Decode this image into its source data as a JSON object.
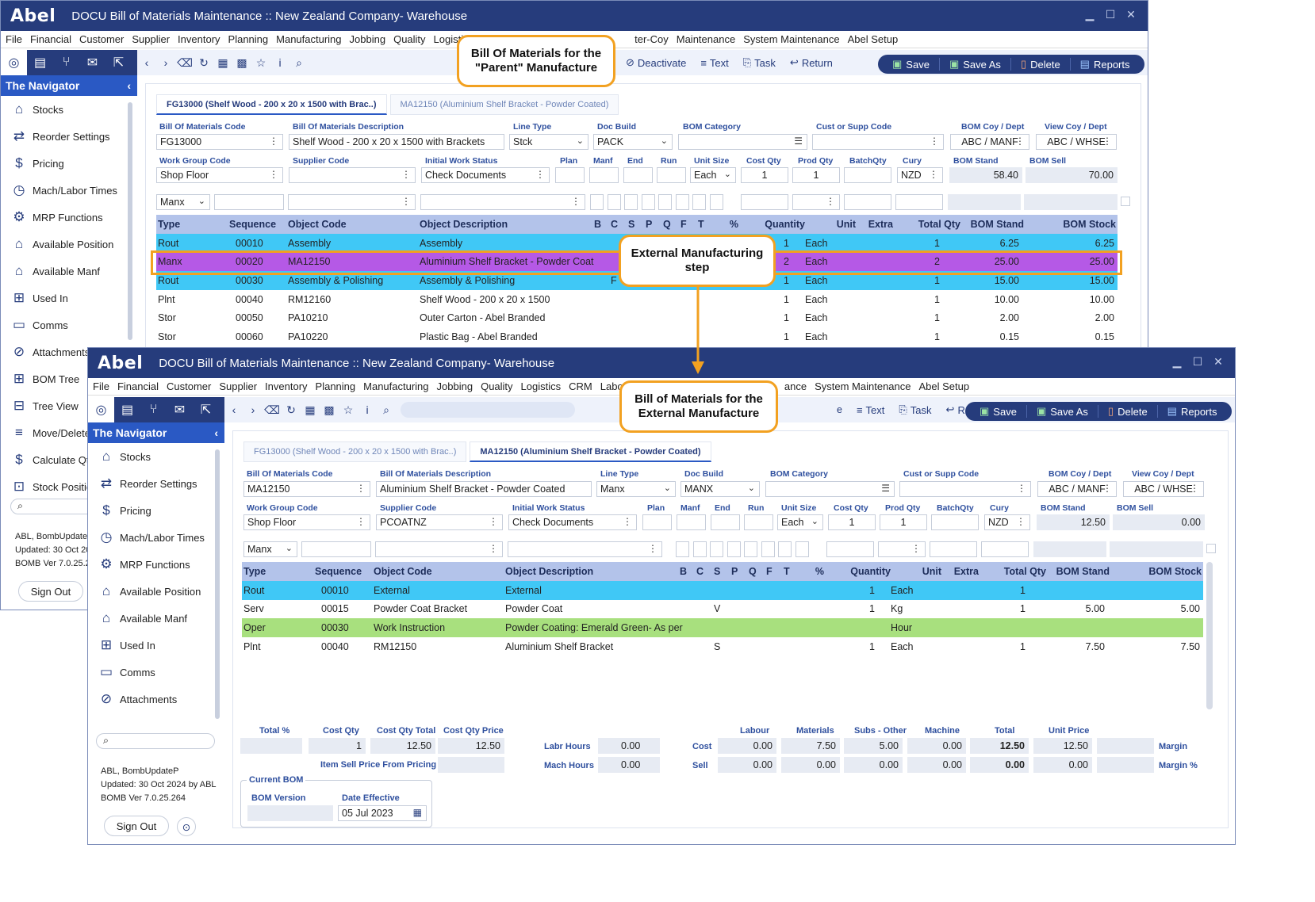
{
  "app": {
    "logo": "Abel",
    "title": "DOCU Bill of Materials Maintenance :: New Zealand Company- Warehouse"
  },
  "menu1": [
    "File",
    "Financial",
    "Customer",
    "Supplier",
    "Inventory",
    "Planning",
    "Manufacturing",
    "Jobbing",
    "Quality",
    "Logisti",
    "ter-Coy",
    "Maintenance",
    "System Maintenance",
    "Abel Setup"
  ],
  "menu2": [
    "File",
    "Financial",
    "Customer",
    "Supplier",
    "Inventory",
    "Planning",
    "Manufacturing",
    "Jobbing",
    "Quality",
    "Logistics",
    "CRM",
    "Labou",
    "ance",
    "System Maintenance",
    "Abel Setup"
  ],
  "toolbar": {
    "deactivate": "Deactivate",
    "text": "Text",
    "task": "Task",
    "return": "Return",
    "save": "Save",
    "save_as": "Save As",
    "delete": "Delete",
    "reports": "Reports",
    "text_partial": "e"
  },
  "navigator": {
    "title": "The Navigator",
    "items1": [
      "Stocks",
      "Reorder Settings",
      "Pricing",
      "Mach/Labor Times",
      "MRP Functions",
      "Available Position",
      "Available Manf",
      "Used In",
      "Comms",
      "Attachments",
      "BOM Tree",
      "Tree View",
      "Move/Delete",
      "Calculate Qty",
      "Stock Positic"
    ],
    "items2": [
      "Stocks",
      "Reorder Settings",
      "Pricing",
      "Mach/Labor Times",
      "MRP Functions",
      "Available Position",
      "Available Manf",
      "Used In",
      "Comms",
      "Attachments"
    ],
    "footer1": [
      "ABL, BombUpdateP",
      "Updated: 30 Oct 20",
      "BOMB Ver 7.0.25.2"
    ],
    "footer2": [
      "ABL, BombUpdateP",
      "Updated: 30 Oct 2024 by ABL",
      "BOMB Ver 7.0.25.264"
    ],
    "sign_out": "Sign Out"
  },
  "labels": {
    "bom_code": "Bill Of Materials Code",
    "bom_desc": "Bill Of Materials Description",
    "line_type": "Line Type",
    "doc_build": "Doc Build",
    "bom_category": "BOM Category",
    "cust_supp": "Cust or Supp Code",
    "bom_coy": "BOM Coy / Dept",
    "view_coy": "View  Coy / Dept",
    "work_group": "Work Group Code",
    "supplier_code": "Supplier Code",
    "initial_status": "Initial Work Status",
    "plan": "Plan",
    "manf": "Manf",
    "end": "End",
    "run": "Run",
    "unit_size": "Unit Size",
    "cost_qty": "Cost Qty",
    "prod_qty": "Prod Qty",
    "batch_qty": "BatchQty",
    "cury": "Cury",
    "bom_stand": "BOM Stand",
    "bom_sell": "BOM Sell"
  },
  "columns": [
    "Type",
    "Sequence",
    "Object Code",
    "Object Description",
    "B",
    "C",
    "S",
    "P",
    "Q",
    "F",
    "T",
    "%",
    "Quantity",
    "Unit",
    "Extra",
    "Total Qty",
    "BOM Stand",
    "BOM Stock"
  ],
  "win1": {
    "tabs": [
      "FG13000 (Shelf Wood  - 200 x 20 x 1500 with Brac..)",
      "MA12150 (Aluminium Shelf Bracket - Powder Coated)"
    ],
    "fields": {
      "bom_code": "FG13000",
      "bom_desc": "Shelf Wood  - 200 x 20 x 1500 with Brackets",
      "line_type": "Stck",
      "doc_build": "PACK",
      "bom_coy": "ABC / MANF",
      "view_coy": "ABC / WHSE",
      "work_group": "Shop Floor",
      "initial_status": "Check Documents",
      "unit_size": "Each",
      "cost_qty": "1",
      "prod_qty": "1",
      "cury": "NZD",
      "bom_stand": "58.40",
      "bom_sell": "70.00",
      "filter_type": "Manx"
    },
    "rows": [
      {
        "type": "Rout",
        "seq": "00010",
        "code": "Assembly",
        "desc": "Assembly",
        "f": "",
        "qty": "1",
        "unit": "Each",
        "tqty": "1",
        "stand": "6.25",
        "stock": "6.25",
        "style": "rout"
      },
      {
        "type": "Manx",
        "seq": "00020",
        "code": "MA12150",
        "desc": "Aluminium Shelf Bracket - Powder Coat",
        "f": "",
        "qty": "2",
        "unit": "Each",
        "tqty": "2",
        "stand": "25.00",
        "stock": "25.00",
        "style": "manx"
      },
      {
        "type": "Rout",
        "seq": "00030",
        "code": "Assembly & Polishing",
        "desc": "Assembly & Polishing",
        "f": "F",
        "qty": "1",
        "unit": "Each",
        "tqty": "1",
        "stand": "15.00",
        "stock": "15.00",
        "style": "rout"
      },
      {
        "type": "Plnt",
        "seq": "00040",
        "code": "RM12160",
        "desc": "Shelf Wood  - 200 x 20 x 1500",
        "f": "",
        "qty": "1",
        "unit": "Each",
        "tqty": "1",
        "stand": "10.00",
        "stock": "10.00",
        "style": ""
      },
      {
        "type": "Stor",
        "seq": "00050",
        "code": "PA10210",
        "desc": "Outer Carton - Abel Branded",
        "f": "",
        "qty": "1",
        "unit": "Each",
        "tqty": "1",
        "stand": "2.00",
        "stock": "2.00",
        "style": ""
      },
      {
        "type": "Stor",
        "seq": "00060",
        "code": "PA10220",
        "desc": "Plastic Bag - Abel Branded",
        "f": "",
        "qty": "1",
        "unit": "Each",
        "tqty": "1",
        "stand": "0.15",
        "stock": "0.15",
        "style": ""
      }
    ]
  },
  "win2": {
    "tabs": [
      "FG13000 (Shelf Wood  - 200 x 20 x 1500 with Brac..)",
      "MA12150 (Aluminium Shelf Bracket - Powder Coated)"
    ],
    "fields": {
      "bom_code": "MA12150",
      "bom_desc": "Aluminium Shelf Bracket - Powder Coated",
      "line_type": "Manx",
      "doc_build": "MANX",
      "bom_coy": "ABC / MANF",
      "view_coy": "ABC / WHSE",
      "work_group": "Shop Floor",
      "supplier_code": "PCOATNZ",
      "initial_status": "Check Documents",
      "unit_size": "Each",
      "cost_qty": "1",
      "prod_qty": "1",
      "cury": "NZD",
      "bom_stand": "12.50",
      "bom_sell": "0.00",
      "filter_type": "Manx"
    },
    "rows": [
      {
        "type": "Rout",
        "seq": "00010",
        "code": "External",
        "desc": "External",
        "s": "",
        "qty": "1",
        "unit": "Each",
        "tqty": "1",
        "stand": "",
        "stock": "",
        "style": "rout"
      },
      {
        "type": "Serv",
        "seq": "00015",
        "code": "Powder Coat Bracket",
        "desc": "Powder Coat",
        "s": "V",
        "qty": "1",
        "unit": "Kg",
        "tqty": "1",
        "stand": "5.00",
        "stock": "5.00",
        "style": ""
      },
      {
        "type": "Oper",
        "seq": "00030",
        "code": "Work Instruction",
        "desc": "Powder Coating: Emerald Green- As per",
        "s": "",
        "qty": "",
        "unit": "Hour",
        "tqty": "",
        "stand": "",
        "stock": "",
        "style": "oper"
      },
      {
        "type": "Plnt",
        "seq": "00040",
        "code": "RM12150",
        "desc": "Aluminium Shelf Bracket",
        "s": "S",
        "qty": "1",
        "unit": "Each",
        "tqty": "1",
        "stand": "7.50",
        "stock": "7.50",
        "style": ""
      }
    ],
    "totals": {
      "total_pct": "Total %",
      "cost_qty_lbl": "Cost Qty",
      "cost_qty_total_lbl": "Cost Qty Total",
      "cost_qty_price_lbl": "Cost Qty Price",
      "cost_qty": "1",
      "cost_qty_total": "12.50",
      "cost_qty_price": "12.50",
      "item_sell_lbl": "Item Sell Price From Pricing",
      "labr_hours_lbl": "Labr Hours",
      "mach_hours_lbl": "Mach Hours",
      "labr_hours": "0.00",
      "mach_hours": "0.00",
      "labour_lbl": "Labour",
      "materials_lbl": "Materials",
      "subs_lbl": "Subs - Other",
      "machine_lbl": "Machine",
      "total_lbl": "Total",
      "unit_price_lbl": "Unit Price",
      "cost_lbl": "Cost",
      "sell_lbl": "Sell",
      "margin_lbl": "Margin",
      "margin_pct_lbl": "Margin %",
      "cost": [
        "0.00",
        "7.50",
        "5.00",
        "0.00",
        "12.50",
        "12.50"
      ],
      "sell": [
        "0.00",
        "0.00",
        "0.00",
        "0.00",
        "0.00",
        "0.00"
      ],
      "current_bom_lbl": "Current BOM",
      "bom_version_lbl": "BOM Version",
      "date_effective_lbl": "Date Effective",
      "date_effective": "05 Jul 2023"
    }
  },
  "callouts": {
    "parent": "Bill Of Materials for the \"Parent\" Manufacture",
    "step": "External Manufacturing step",
    "external": "Bill of Materials for the External Manufacture"
  },
  "colors": {
    "titlebar": "#263c7c",
    "nav_header": "#2a59c4",
    "row_rout": "#40c8f6",
    "row_manx": "#b559e6",
    "row_oper": "#a8e07e",
    "callout_border": "#f2a121"
  }
}
